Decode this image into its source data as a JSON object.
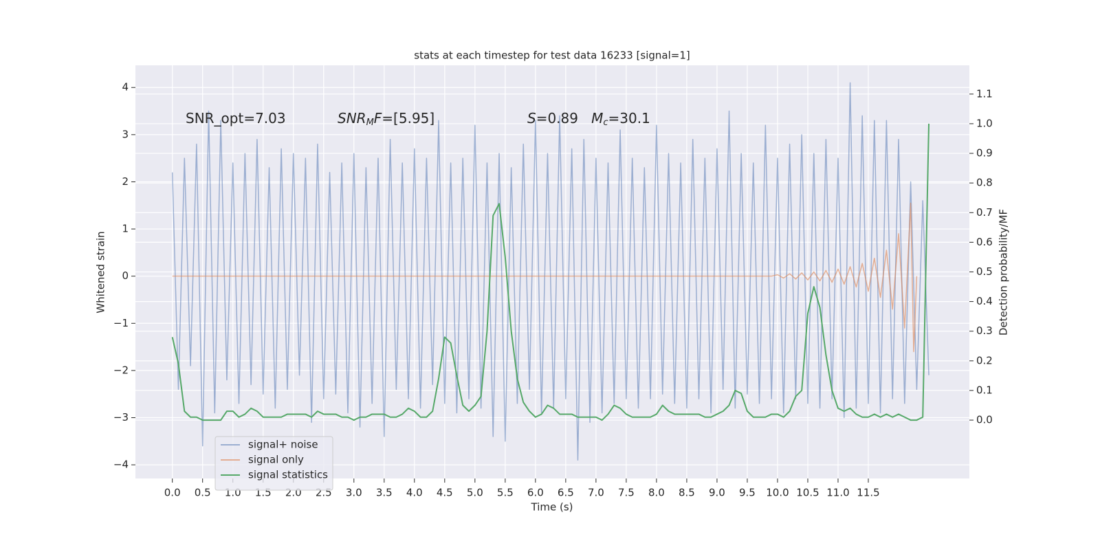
{
  "chart_data": {
    "type": "line",
    "title": "stats at each timestep for test data 16233 [signal=1]",
    "x_label": "Time (s)",
    "y_label": "Whitened strain",
    "y2_label": "Detection probability/MF",
    "xlim": [
      -0.61,
      13.17
    ],
    "ylim": [
      -4.29,
      4.47
    ],
    "y2lim": [
      -0.197,
      1.197
    ],
    "xticks": [
      {
        "value": 0,
        "label": "0.0"
      },
      0.5,
      {
        "value": 1,
        "label": "1.0"
      },
      1.5,
      {
        "value": 2,
        "label": "2.0"
      },
      2.5,
      {
        "value": 3,
        "label": "3.0"
      },
      3.5,
      {
        "value": 4,
        "label": "4.0"
      },
      4.5,
      {
        "value": 5,
        "label": "5.0"
      },
      5.5,
      {
        "value": 6,
        "label": "6.0"
      },
      6.5,
      {
        "value": 7,
        "label": "7.0"
      },
      7.5,
      {
        "value": 8,
        "label": "8.0"
      },
      8.5,
      {
        "value": 9,
        "label": "9.0"
      },
      9.5,
      {
        "value": 10,
        "label": "10.0"
      },
      10.5,
      {
        "value": 11,
        "label": "11.0"
      },
      11.5
    ],
    "yticks": [
      {
        "value": -4,
        "label": "−4"
      },
      {
        "value": -3,
        "label": "−3"
      },
      {
        "value": -2,
        "label": "−2"
      },
      {
        "value": -1,
        "label": "−1"
      },
      0,
      1,
      2,
      3,
      4
    ],
    "y2ticks": [
      {
        "value": 0,
        "label": "0.0"
      },
      0.1,
      0.2,
      0.3,
      0.4,
      0.5,
      0.6,
      0.7,
      0.8,
      0.9,
      {
        "value": 1,
        "label": "1.0"
      },
      1.1
    ],
    "grid": true,
    "background": "#eaeaf2",
    "legend": "lower left",
    "x": [
      0,
      0.1,
      0.2,
      0.3,
      0.4,
      0.5,
      0.6,
      0.7,
      0.8,
      0.9,
      1,
      1.1,
      1.2,
      1.3,
      1.4,
      1.5,
      1.6,
      1.7,
      1.8,
      1.9,
      2,
      2.1,
      2.2,
      2.3,
      2.4,
      2.5,
      2.6,
      2.7,
      2.8,
      2.9,
      3,
      3.1,
      3.2,
      3.3,
      3.4,
      3.5,
      3.6,
      3.7,
      3.8,
      3.9,
      4,
      4.1,
      4.2,
      4.3,
      4.4,
      4.5,
      4.6,
      4.7,
      4.8,
      4.9,
      5,
      5.1,
      5.2,
      5.3,
      5.4,
      5.5,
      5.6,
      5.7,
      5.8,
      5.9,
      6,
      6.1,
      6.2,
      6.3,
      6.4,
      6.5,
      6.6,
      6.7,
      6.8,
      6.9,
      7,
      7.1,
      7.2,
      7.3,
      7.4,
      7.5,
      7.6,
      7.7,
      7.8,
      7.9,
      8,
      8.1,
      8.2,
      8.3,
      8.4,
      8.5,
      8.6,
      8.7,
      8.8,
      8.9,
      9,
      9.1,
      9.2,
      9.3,
      9.4,
      9.5,
      9.6,
      9.7,
      9.8,
      9.9,
      10,
      10.1,
      10.2,
      10.3,
      10.4,
      10.5,
      10.6,
      10.7,
      10.8,
      10.9,
      11,
      11.1,
      11.2,
      11.3,
      11.4,
      11.5,
      11.6,
      11.7,
      11.8,
      11.9,
      12,
      12.1,
      12.2,
      12.3,
      12.4,
      12.5
    ],
    "series": [
      {
        "name": "signal+ noise",
        "color": "#4c72b0",
        "opacity": 0.5,
        "values": [
          2.2,
          -2.4,
          2.5,
          -1.9,
          2.8,
          -3.6,
          3.5,
          -2.9,
          3.3,
          -2.2,
          2.4,
          -2.7,
          2.6,
          -2.3,
          2.9,
          -2.5,
          2.3,
          -2.8,
          2.7,
          -2.4,
          2.6,
          -2.1,
          2.5,
          -3.1,
          2.8,
          -2.6,
          2.2,
          -2.5,
          2.4,
          -2.9,
          2.6,
          -3.2,
          2.3,
          -2.7,
          2.5,
          -3.4,
          2.9,
          -2.4,
          2.4,
          -2.6,
          2.7,
          -2.8,
          2.5,
          -2.3,
          3.3,
          -2.7,
          2.4,
          -2.9,
          2.5,
          -2.6,
          3.2,
          -2.8,
          2.4,
          -3.4,
          2.6,
          -3.5,
          2.3,
          -2.7,
          2.8,
          -2.4,
          3.3,
          -2.9,
          2.6,
          -2.8,
          3.4,
          -2.6,
          2.7,
          -3.9,
          2.9,
          -3.1,
          2.5,
          -2.9,
          2.4,
          -2.7,
          3.1,
          -2.6,
          2.5,
          -2.8,
          2.3,
          -2.6,
          3.2,
          -2.5,
          2.6,
          -2.7,
          2.4,
          -2.8,
          2.9,
          -2.6,
          2.5,
          -2.9,
          2.7,
          -2.4,
          3.5,
          -2.8,
          2.6,
          -2.5,
          2.4,
          -2.7,
          3.2,
          -2.6,
          2.5,
          -2.9,
          2.8,
          -2.6,
          3.0,
          -2.7,
          2.6,
          -2.8,
          2.9,
          -2.6,
          2.5,
          -3.0,
          4.1,
          -2.8,
          3.4,
          -2.7,
          3.3,
          -2.9,
          3.3,
          -2.6,
          2.9,
          -2.7,
          2.0,
          -2.4,
          1.6,
          -2.1
        ]
      },
      {
        "name": "signal only",
        "color": "#dd8452",
        "opacity": 0.6,
        "x": [
          0,
          9.9,
          10,
          10.1,
          10.2,
          10.3,
          10.4,
          10.5,
          10.6,
          10.7,
          10.8,
          10.9,
          11,
          11.1,
          11.2,
          11.3,
          11.4,
          11.5,
          11.6,
          11.7,
          11.8,
          11.9,
          12,
          12.1,
          12.2,
          12.25,
          12.3
        ],
        "values": [
          0,
          0,
          0.03,
          -0.04,
          0.05,
          -0.06,
          0.07,
          -0.08,
          0.09,
          -0.1,
          0.12,
          -0.13,
          0.15,
          -0.17,
          0.2,
          -0.23,
          0.27,
          -0.32,
          0.38,
          -0.45,
          0.55,
          -0.7,
          0.9,
          -1.1,
          1.55,
          -1.6,
          0
        ]
      },
      {
        "name": "signal statistics",
        "color": "#55a868",
        "axis": "y2",
        "values": [
          0.28,
          0.19,
          0.03,
          0.01,
          0.01,
          0.0,
          0.0,
          0.0,
          0.0,
          0.03,
          0.03,
          0.01,
          0.02,
          0.04,
          0.03,
          0.01,
          0.01,
          0.01,
          0.01,
          0.02,
          0.02,
          0.02,
          0.02,
          0.01,
          0.03,
          0.02,
          0.02,
          0.02,
          0.01,
          0.01,
          0.0,
          0.01,
          0.01,
          0.02,
          0.02,
          0.02,
          0.01,
          0.01,
          0.02,
          0.04,
          0.03,
          0.01,
          0.01,
          0.03,
          0.14,
          0.28,
          0.26,
          0.15,
          0.05,
          0.03,
          0.05,
          0.08,
          0.3,
          0.69,
          0.73,
          0.55,
          0.3,
          0.14,
          0.06,
          0.03,
          0.01,
          0.02,
          0.05,
          0.04,
          0.02,
          0.02,
          0.02,
          0.01,
          0.01,
          0.01,
          0.01,
          0.0,
          0.02,
          0.05,
          0.04,
          0.02,
          0.01,
          0.01,
          0.01,
          0.01,
          0.02,
          0.05,
          0.03,
          0.02,
          0.02,
          0.02,
          0.02,
          0.02,
          0.01,
          0.01,
          0.02,
          0.03,
          0.05,
          0.1,
          0.09,
          0.03,
          0.01,
          0.01,
          0.01,
          0.02,
          0.02,
          0.01,
          0.03,
          0.08,
          0.1,
          0.36,
          0.45,
          0.38,
          0.22,
          0.1,
          0.04,
          0.03,
          0.04,
          0.02,
          0.01,
          0.01,
          0.02,
          0.01,
          0.02,
          0.01,
          0.02,
          0.01,
          0.0,
          0.0,
          0.01,
          1.0
        ]
      }
    ],
    "annotations": [
      {
        "parts": [
          {
            "text": "SNR_opt=7.03"
          }
        ]
      },
      {
        "parts": [
          {
            "text": "SNR",
            "italic": true
          },
          {
            "text": "M",
            "italic": true,
            "sub": true
          },
          {
            "text": "F",
            "italic": true
          },
          {
            "text": "=[5.95]"
          }
        ]
      },
      {
        "parts": [
          {
            "text": "S",
            "italic": true
          },
          {
            "text": "=0.89   "
          },
          {
            "text": "M",
            "italic": true
          },
          {
            "text": "c",
            "italic": true,
            "sub": true
          },
          {
            "text": "=30.1"
          }
        ]
      }
    ]
  }
}
